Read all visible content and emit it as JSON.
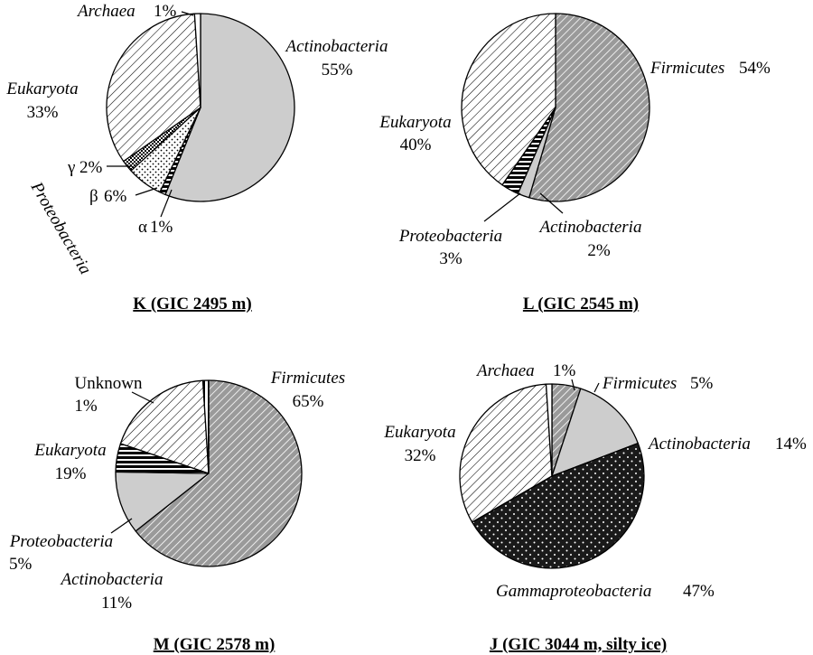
{
  "chart_data": [
    {
      "type": "pie",
      "title": "K (GIC 2495 m)",
      "slices": [
        {
          "name": "Actinobacteria",
          "value": 55,
          "pct_label": "55%",
          "fill": "solid-light-gray"
        },
        {
          "name": "Proteobacteria α",
          "short": "α",
          "value": 1,
          "pct_label": "1%",
          "fill": "horizontal-lines"
        },
        {
          "name": "Proteobacteria β",
          "short": "β",
          "value": 6,
          "pct_label": "6%",
          "fill": "dots-light"
        },
        {
          "name": "Proteobacteria γ",
          "short": "γ",
          "value": 2,
          "pct_label": "2%",
          "fill": "checker-dark"
        },
        {
          "name": "Eukaryota",
          "value": 33,
          "pct_label": "33%",
          "fill": "diagonal-light"
        },
        {
          "name": "Archaea",
          "value": 1,
          "pct_label": "1%",
          "fill": "white"
        }
      ],
      "group_label": "Proteobacteria"
    },
    {
      "type": "pie",
      "title": "L (GIC 2545 m)",
      "slices": [
        {
          "name": "Firmicutes",
          "value": 54,
          "pct_label": "54%",
          "fill": "diagonal-dark"
        },
        {
          "name": "Actinobacteria",
          "value": 2,
          "pct_label": "2%",
          "fill": "solid-light-gray"
        },
        {
          "name": "Proteobacteria",
          "value": 3,
          "pct_label": "3%",
          "fill": "horizontal-lines"
        },
        {
          "name": "Eukaryota",
          "value": 40,
          "pct_label": "40%",
          "fill": "diagonal-light"
        }
      ]
    },
    {
      "type": "pie",
      "title": "M (GIC 2578 m)",
      "slices": [
        {
          "name": "Firmicutes",
          "value": 65,
          "pct_label": "65%",
          "fill": "diagonal-dark"
        },
        {
          "name": "Actinobacteria",
          "value": 11,
          "pct_label": "11%",
          "fill": "solid-light-gray"
        },
        {
          "name": "Proteobacteria",
          "value": 5,
          "pct_label": "5%",
          "fill": "horizontal-lines"
        },
        {
          "name": "Eukaryota",
          "value": 19,
          "pct_label": "19%",
          "fill": "diagonal-light"
        },
        {
          "name": "Unknown",
          "value": 1,
          "pct_label": "1%",
          "fill": "vertical-lines"
        }
      ]
    },
    {
      "type": "pie",
      "title": "J (GIC 3044 m, silty ice)",
      "slices": [
        {
          "name": "Firmicutes",
          "value": 5,
          "pct_label": "5%",
          "fill": "diagonal-dark"
        },
        {
          "name": "Actinobacteria",
          "value": 14,
          "pct_label": "14%",
          "fill": "solid-light-gray"
        },
        {
          "name": "Gammaproteobacteria",
          "value": 47,
          "pct_label": "47%",
          "fill": "dots-dark"
        },
        {
          "name": "Eukaryota",
          "value": 32,
          "pct_label": "32%",
          "fill": "diagonal-light"
        },
        {
          "name": "Archaea",
          "value": 1,
          "pct_label": "1%",
          "fill": "white"
        }
      ]
    }
  ]
}
